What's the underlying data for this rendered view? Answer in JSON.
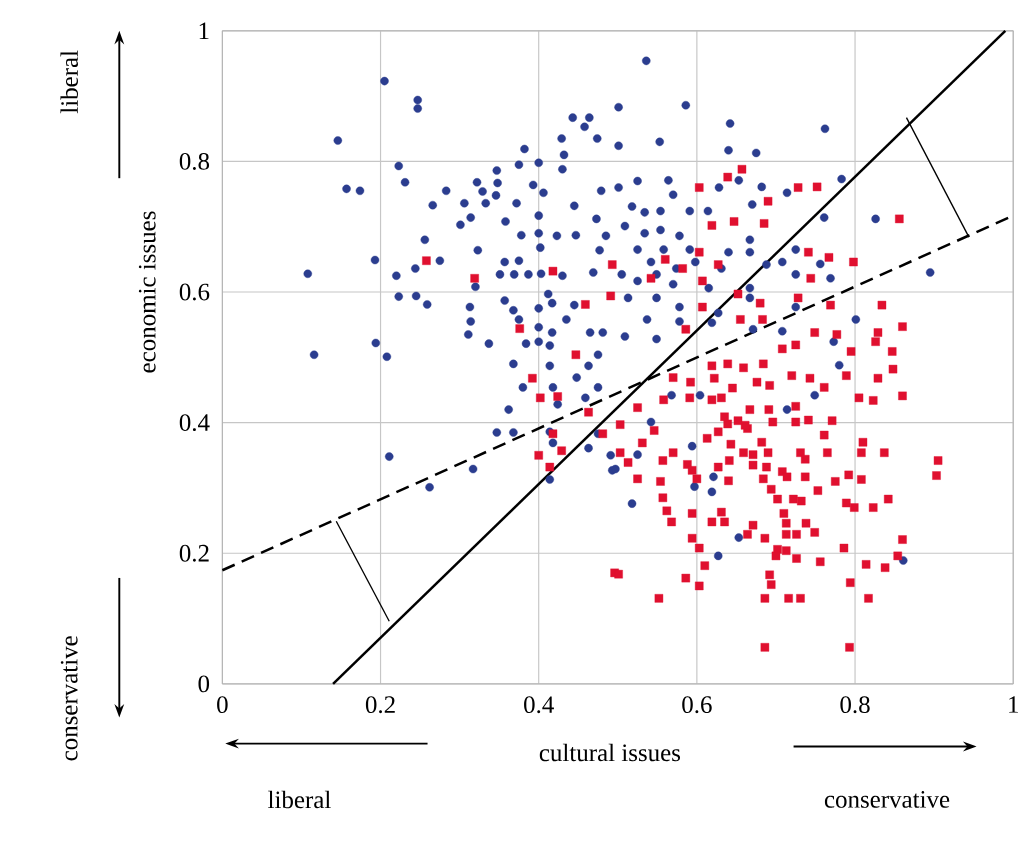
{
  "chart_data": {
    "type": "scatter",
    "xlabel": "cultural issues",
    "ylabel": "economic issues",
    "xlim": [
      0,
      1
    ],
    "ylim": [
      0,
      1
    ],
    "xticks": [
      0,
      0.2,
      0.4,
      0.6,
      0.8,
      1
    ],
    "yticks": [
      0,
      0.2,
      0.4,
      0.6,
      0.8,
      1
    ],
    "grid": true,
    "annotations": [
      "liberal",
      "conservative",
      "liberal",
      "conservative"
    ],
    "series": [
      {
        "marker": "circle",
        "color": "#2b3d8f",
        "x": [
          0.205,
          0.247,
          0.247,
          0.146,
          0.223,
          0.231,
          0.157,
          0.174,
          0.283,
          0.266,
          0.301,
          0.314,
          0.306,
          0.322,
          0.329,
          0.333,
          0.347,
          0.348,
          0.346,
          0.382,
          0.375,
          0.372,
          0.358,
          0.378,
          0.4,
          0.4,
          0.4,
          0.402,
          0.393,
          0.406,
          0.429,
          0.432,
          0.43,
          0.443,
          0.464,
          0.458,
          0.474,
          0.445,
          0.423,
          0.447,
          0.479,
          0.473,
          0.485,
          0.477,
          0.256,
          0.193,
          0.108,
          0.22,
          0.244,
          0.275,
          0.323,
          0.357,
          0.375,
          0.351,
          0.369,
          0.387,
          0.403,
          0.43,
          0.469,
          null,
          0.32,
          0.223,
          0.245,
          0.259,
          0.313,
          0.314,
          0.311,
          0.337,
          0.357,
          0.368,
          0.375,
          0.4,
          0.4,
          0.417,
          0.412,
          0.417,
          0.445,
          0.435,
          0.465,
          0.481,
          0.194,
          0.116,
          0.208,
          0.384,
          0.4,
          0.414,
          0.475,
          0.536,
          0.586,
          0.642,
          0.64,
          0.675,
          0.553,
          0.762,
          0.501,
          0.501,
          0.525,
          0.564,
          0.57,
          0.501,
          0.628,
          0.653,
          0.682,
          0.714,
          0.783,
          0.761,
          0.826,
          0.895,
          0.67,
          0.667,
          0.518,
          0.534,
          0.554,
          0.591,
          0.614,
          0.509,
          0.534,
          0.554,
          0.578,
          0.525,
          0.558,
          0.591,
          0.64,
          0.667,
          0.725,
          0.542,
          0.574,
          0.598,
          0.631,
          0.688,
          0.708,
          0.756,
          0.769,
          0.801,
          0.505,
          0.525,
          0.549,
          0.57,
          0.615,
          0.667,
          0.725,
          0.513,
          0.549,
          0.578,
          0.627,
          0.667,
          0.725,
          0.537,
          0.578,
          0.619,
          0.671,
          0.708,
          0.773,
          0.509,
          0.549,
          0.368,
          0.38,
          0.362,
          0.347,
          0.368,
          0.211,
          0.262,
          0.317,
          0.414,
          0.418,
          0.424,
          0.414,
          0.418,
          0.459,
          0.448,
          0.463,
          0.414,
          0.491,
          0.493,
          0.463,
          0.475,
          0.475,
          0.78,
          0.749,
          0.714,
          0.542,
          0.594,
          0.525,
          0.518,
          0.621,
          0.619,
          0.597,
          0.653,
          0.627,
          0.861,
          0.568,
          0.604,
          0.497
        ],
        "values": [
          0.923,
          0.894,
          0.881,
          0.832,
          0.793,
          0.768,
          0.758,
          0.755,
          0.755,
          0.733,
          0.703,
          0.714,
          0.736,
          0.768,
          0.754,
          0.736,
          0.786,
          0.767,
          0.748,
          0.819,
          0.795,
          0.736,
          0.708,
          0.687,
          0.798,
          0.717,
          0.69,
          0.668,
          0.764,
          0.752,
          0.835,
          0.81,
          0.788,
          0.867,
          0.867,
          0.853,
          0.835,
          0.732,
          0.686,
          0.687,
          0.755,
          0.712,
          0.686,
          0.664,
          0.68,
          0.649,
          0.628,
          0.625,
          0.636,
          0.648,
          0.664,
          0.646,
          0.648,
          0.627,
          0.627,
          0.627,
          0.628,
          0.625,
          0.63,
          null,
          0.608,
          0.593,
          0.594,
          0.581,
          0.577,
          0.555,
          0.535,
          0.521,
          0.587,
          0.572,
          0.558,
          0.575,
          0.546,
          0.538,
          0.597,
          0.583,
          0.58,
          0.558,
          0.538,
          0.538,
          0.522,
          0.504,
          0.501,
          0.521,
          0.524,
          0.518,
          0.504,
          0.954,
          0.886,
          0.858,
          0.817,
          0.813,
          0.83,
          0.85,
          0.883,
          0.824,
          0.77,
          0.771,
          0.749,
          0.76,
          0.76,
          0.771,
          0.761,
          0.752,
          0.773,
          0.714,
          0.712,
          0.63,
          0.734,
          0.68,
          0.731,
          0.722,
          0.724,
          0.724,
          0.724,
          0.701,
          0.69,
          0.695,
          0.686,
          0.665,
          0.665,
          0.665,
          0.661,
          0.661,
          0.665,
          0.646,
          0.636,
          0.646,
          0.636,
          0.642,
          0.646,
          0.643,
          0.621,
          0.558,
          0.627,
          0.617,
          0.627,
          0.612,
          0.606,
          0.606,
          0.627,
          0.591,
          0.591,
          0.577,
          0.568,
          0.591,
          0.577,
          0.558,
          0.555,
          0.553,
          0.543,
          0.54,
          0.524,
          0.532,
          0.528,
          0.49,
          0.454,
          0.42,
          0.385,
          0.385,
          0.348,
          0.301,
          0.329,
          0.487,
          0.454,
          0.428,
          0.386,
          0.369,
          0.438,
          0.469,
          0.361,
          0.313,
          0.35,
          0.327,
          0.487,
          0.454,
          0.383,
          0.488,
          0.442,
          0.42,
          0.401,
          0.364,
          0.351,
          0.276,
          0.317,
          0.294,
          0.302,
          0.224,
          0.196,
          0.189,
          0.442,
          0.442,
          0.329
        ]
      },
      {
        "marker": "square",
        "color": "#e0102f",
        "x": [
          0.258,
          0.418,
          0.459,
          0.376,
          0.447,
          0.493,
          0.491,
          0.319,
          0.657,
          0.639,
          0.603,
          0.728,
          0.752,
          0.69,
          0.647,
          0.685,
          0.856,
          0.619,
          0.741,
          0.767,
          0.798,
          0.603,
          0.582,
          0.56,
          0.542,
          0.607,
          0.627,
          0.744,
          0.834,
          0.86,
          0.829,
          0.826,
          0.847,
          0.795,
          0.769,
          0.728,
          0.749,
          0.777,
          0.652,
          0.68,
          0.683,
          0.655,
          0.708,
          0.725,
          0.607,
          0.586,
          0.392,
          0.402,
          0.424,
          0.4,
          0.429,
          0.418,
          0.481,
          0.414,
          0.496,
          0.463,
          0.503,
          0.503,
          0.513,
          0.525,
          0.501,
          0.552,
          0.586,
          0.603,
          0.61,
          0.603,
          0.594,
          0.594,
          0.568,
          0.562,
          0.557,
          0.554,
          0.557,
          0.57,
          0.588,
          0.594,
          0.6,
          0.619,
          0.635,
          0.631,
          0.64,
          0.641,
          0.627,
          0.643,
          0.613,
          0.627,
          0.639,
          0.652,
          0.664,
          0.635,
          0.546,
          0.531,
          0.525,
          0.558,
          0.591,
          0.592,
          0.57,
          0.619,
          0.631,
          0.645,
          0.622,
          0.619,
          0.639,
          0.659,
          0.684,
          0.676,
          0.692,
          0.72,
          0.743,
          0.761,
          0.789,
          0.805,
          0.823,
          0.829,
          0.848,
          0.86,
          0.667,
          0.691,
          0.725,
          0.696,
          0.725,
          0.741,
          0.771,
          0.661,
          0.682,
          0.659,
          0.671,
          0.671,
          0.69,
          0.688,
          0.684,
          0.694,
          0.702,
          0.708,
          0.714,
          0.737,
          0.731,
          0.737,
          0.753,
          0.761,
          0.765,
          0.775,
          0.792,
          0.808,
          0.81,
          0.808,
          0.789,
          0.799,
          0.823,
          0.842,
          0.837,
          0.905,
          0.903,
          0.722,
          0.732,
          0.71,
          0.713,
          0.671,
          0.686,
          0.664,
          0.713,
          0.726,
          0.738,
          0.749,
          0.702,
          0.713,
          0.726,
          0.7,
          0.756,
          0.786,
          0.814,
          0.838,
          0.86,
          0.854,
          0.692,
          0.694,
          0.686,
          0.716,
          0.731,
          0.794,
          0.817,
          0.686,
          0.793
        ],
        "values": [
          0.648,
          0.632,
          0.581,
          0.544,
          0.504,
          0.642,
          0.594,
          0.621,
          0.788,
          0.776,
          0.76,
          0.76,
          0.761,
          0.739,
          0.708,
          0.705,
          0.712,
          0.702,
          0.661,
          0.653,
          0.646,
          0.661,
          0.636,
          0.65,
          0.621,
          0.617,
          0.642,
          0.621,
          0.58,
          0.547,
          0.538,
          0.524,
          0.509,
          0.509,
          0.58,
          0.591,
          0.538,
          0.535,
          0.597,
          0.583,
          0.558,
          0.558,
          0.513,
          0.519,
          0.577,
          0.543,
          0.468,
          0.438,
          0.44,
          0.35,
          0.357,
          0.383,
          0.383,
          0.332,
          0.17,
          0.416,
          0.397,
          0.354,
          0.339,
          0.314,
          0.168,
          0.131,
          0.162,
          0.15,
          0.181,
          0.208,
          0.223,
          0.261,
          0.248,
          0.265,
          0.285,
          0.31,
          0.342,
          0.354,
          0.336,
          0.327,
          0.314,
          0.248,
          0.248,
          0.263,
          0.311,
          0.342,
          0.332,
          0.367,
          0.376,
          0.386,
          0.398,
          0.403,
          0.391,
          0.409,
          0.388,
          0.369,
          0.423,
          0.435,
          0.438,
          0.462,
          0.469,
          0.435,
          0.438,
          0.453,
          0.468,
          0.487,
          0.49,
          0.484,
          0.49,
          0.462,
          0.457,
          0.472,
          0.468,
          0.454,
          0.472,
          0.438,
          0.434,
          0.468,
          0.482,
          0.441,
          0.42,
          0.42,
          0.425,
          0.401,
          0.401,
          0.404,
          0.403,
          0.396,
          0.37,
          0.354,
          0.351,
          0.335,
          0.354,
          0.332,
          0.314,
          0.298,
          0.283,
          0.325,
          0.317,
          0.317,
          0.354,
          0.344,
          0.296,
          0.381,
          0.354,
          0.31,
          0.32,
          0.313,
          0.37,
          0.354,
          0.277,
          0.27,
          0.27,
          0.283,
          0.354,
          0.342,
          0.319,
          0.283,
          0.28,
          0.261,
          0.246,
          0.243,
          0.223,
          0.229,
          0.229,
          0.229,
          0.246,
          0.232,
          0.206,
          0.204,
          0.192,
          0.196,
          0.187,
          0.208,
          0.183,
          0.178,
          0.221,
          0.196,
          0.167,
          0.152,
          0.131,
          0.131,
          0.131,
          0.155,
          0.131,
          0.056,
          0.056
        ]
      },
      {
        "type": "line",
        "line_style": "solid",
        "color": "#000000",
        "x": [
          0.14,
          0.99
        ],
        "values": [
          0,
          1
        ]
      },
      {
        "type": "line",
        "line_style": "dashed",
        "color": "#000000",
        "x": [
          0,
          1
        ],
        "values": [
          0.174,
          0.717
        ]
      },
      {
        "type": "line",
        "line_style": "solid",
        "color": "#000000",
        "x": [
          0.144,
          0.211
        ],
        "values": [
          0.249,
          0.096
        ]
      },
      {
        "type": "line",
        "line_style": "solid",
        "color": "#000000",
        "x": [
          0.944,
          0.865
        ],
        "values": [
          0.684,
          0.867
        ]
      }
    ]
  }
}
